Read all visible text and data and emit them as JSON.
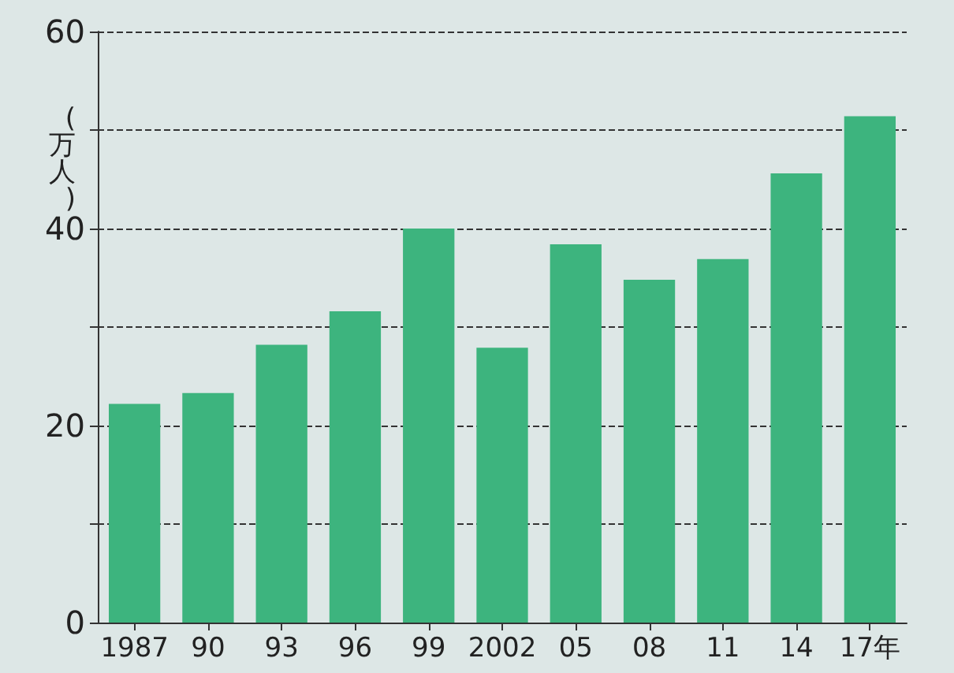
{
  "chart_data": {
    "type": "bar",
    "ylabel": "(万人)",
    "categories": [
      "1987",
      "90",
      "93",
      "96",
      "99",
      "2002",
      "05",
      "08",
      "11",
      "14",
      "17年"
    ],
    "values": [
      22.2,
      23.3,
      28.2,
      31.6,
      40.0,
      27.9,
      38.4,
      34.8,
      36.9,
      45.6,
      51.4
    ],
    "color": "#3db47e",
    "ylim": [
      0,
      60
    ],
    "yticks": [
      0,
      {
        "value": 10,
        "label": null
      },
      20,
      {
        "value": 30,
        "label": null
      },
      40,
      {
        "value": 50,
        "label": null
      },
      60
    ],
    "grid": "y"
  }
}
